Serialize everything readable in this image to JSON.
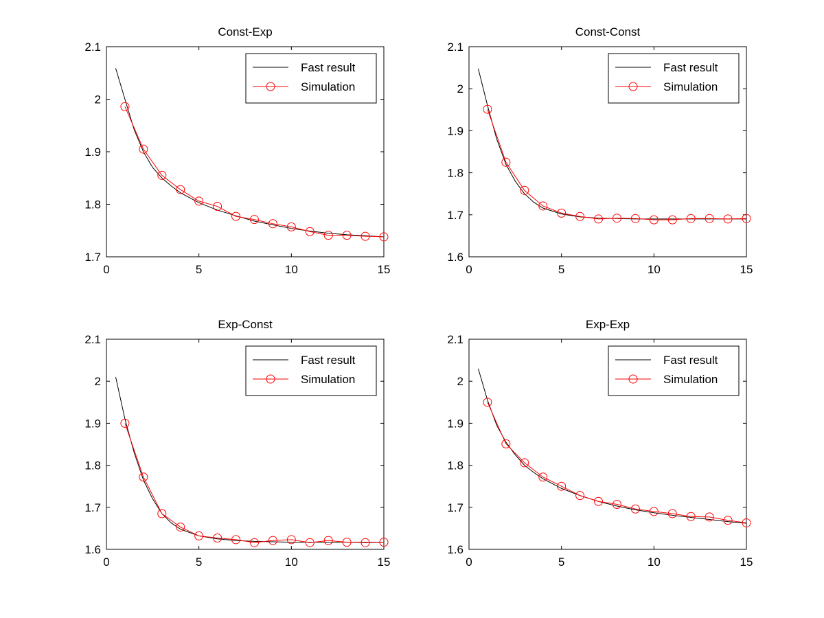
{
  "figure": {
    "background": "#ffffff",
    "fast_color": "#000000",
    "sim_color": "#ff0000"
  },
  "chart_data": [
    {
      "type": "line",
      "title": "Const-Exp",
      "xlabel": "",
      "ylabel": "",
      "xlim": [
        0,
        15
      ],
      "ylim": [
        1.7,
        2.1
      ],
      "xticks": [
        0,
        5,
        10,
        15
      ],
      "yticks": [
        1.7,
        1.8,
        1.9,
        2.0,
        2.1
      ],
      "xtick_labels": [
        "0",
        "5",
        "10",
        "15"
      ],
      "ytick_labels": [
        "1.7",
        "1.8",
        "1.9",
        "2",
        "2.1"
      ],
      "grid": false,
      "legend": {
        "position": "top-right",
        "entries": [
          "Fast result",
          "Simulation"
        ]
      },
      "series": [
        {
          "name": "Fast result",
          "marker": "none",
          "x": [
            0.5,
            1,
            1.5,
            2,
            2.5,
            3,
            3.5,
            4,
            5,
            6,
            7,
            8,
            9,
            10,
            11,
            12,
            13,
            14,
            15
          ],
          "y": [
            2.059,
            2.0,
            1.942,
            1.9,
            1.87,
            1.85,
            1.835,
            1.822,
            1.803,
            1.789,
            1.778,
            1.768,
            1.761,
            1.754,
            1.749,
            1.745,
            1.742,
            1.74,
            1.738
          ]
        },
        {
          "name": "Simulation",
          "marker": "circle",
          "x": [
            1,
            2,
            3,
            4,
            5,
            6,
            7,
            8,
            9,
            10,
            11,
            12,
            13,
            14,
            15
          ],
          "y": [
            1.986,
            1.905,
            1.855,
            1.828,
            1.806,
            1.796,
            1.777,
            1.771,
            1.763,
            1.757,
            1.748,
            1.741,
            1.741,
            1.739,
            1.738
          ]
        }
      ]
    },
    {
      "type": "line",
      "title": "Const-Const",
      "xlabel": "",
      "ylabel": "",
      "xlim": [
        0,
        15
      ],
      "ylim": [
        1.6,
        2.1
      ],
      "xticks": [
        0,
        5,
        10,
        15
      ],
      "yticks": [
        1.6,
        1.7,
        1.8,
        1.9,
        2.0,
        2.1
      ],
      "xtick_labels": [
        "0",
        "5",
        "10",
        "15"
      ],
      "ytick_labels": [
        "1.6",
        "1.7",
        "1.8",
        "1.9",
        "2",
        "2.1"
      ],
      "grid": false,
      "legend": {
        "position": "top-right",
        "entries": [
          "Fast result",
          "Simulation"
        ]
      },
      "series": [
        {
          "name": "Fast result",
          "marker": "none",
          "x": [
            0.5,
            1,
            1.5,
            2,
            2.5,
            3,
            3.5,
            4,
            5,
            6,
            7,
            8,
            9,
            10,
            11,
            12,
            13,
            14,
            15
          ],
          "y": [
            2.048,
            1.96,
            1.88,
            1.82,
            1.78,
            1.75,
            1.73,
            1.716,
            1.702,
            1.695,
            1.692,
            1.691,
            1.69,
            1.69,
            1.69,
            1.69,
            1.69,
            1.69,
            1.69
          ]
        },
        {
          "name": "Simulation",
          "marker": "circle",
          "x": [
            1,
            2,
            3,
            4,
            5,
            6,
            7,
            8,
            9,
            10,
            11,
            12,
            13,
            14,
            15
          ],
          "y": [
            1.951,
            1.825,
            1.758,
            1.721,
            1.704,
            1.696,
            1.69,
            1.692,
            1.691,
            1.688,
            1.688,
            1.691,
            1.691,
            1.69,
            1.691
          ]
        }
      ]
    },
    {
      "type": "line",
      "title": "Exp-Const",
      "xlabel": "",
      "ylabel": "",
      "xlim": [
        0,
        15
      ],
      "ylim": [
        1.6,
        2.1
      ],
      "xticks": [
        0,
        5,
        10,
        15
      ],
      "yticks": [
        1.6,
        1.7,
        1.8,
        1.9,
        2.0,
        2.1
      ],
      "xtick_labels": [
        "0",
        "5",
        "10",
        "15"
      ],
      "ytick_labels": [
        "1.6",
        "1.7",
        "1.8",
        "1.9",
        "2",
        "2.1"
      ],
      "grid": false,
      "legend": {
        "position": "top-right",
        "entries": [
          "Fast result",
          "Simulation"
        ]
      },
      "series": [
        {
          "name": "Fast result",
          "marker": "none",
          "x": [
            0.5,
            1,
            1.5,
            2,
            2.5,
            3,
            3.5,
            4,
            5,
            6,
            7,
            8,
            9,
            10,
            11,
            12,
            13,
            14,
            15
          ],
          "y": [
            2.01,
            1.91,
            1.83,
            1.765,
            1.72,
            1.685,
            1.663,
            1.648,
            1.632,
            1.625,
            1.621,
            1.619,
            1.618,
            1.617,
            1.617,
            1.617,
            1.617,
            1.617,
            1.617
          ]
        },
        {
          "name": "Simulation",
          "marker": "circle",
          "x": [
            1,
            2,
            3,
            4,
            5,
            6,
            7,
            8,
            9,
            10,
            11,
            12,
            13,
            14,
            15
          ],
          "y": [
            1.9,
            1.772,
            1.685,
            1.653,
            1.632,
            1.627,
            1.623,
            1.616,
            1.621,
            1.623,
            1.616,
            1.621,
            1.617,
            1.616,
            1.617
          ]
        }
      ]
    },
    {
      "type": "line",
      "title": "Exp-Exp",
      "xlabel": "",
      "ylabel": "",
      "xlim": [
        0,
        15
      ],
      "ylim": [
        1.6,
        2.1
      ],
      "xticks": [
        0,
        5,
        10,
        15
      ],
      "yticks": [
        1.6,
        1.7,
        1.8,
        1.9,
        2.0,
        2.1
      ],
      "xtick_labels": [
        "0",
        "5",
        "10",
        "15"
      ],
      "ytick_labels": [
        "1.6",
        "1.7",
        "1.8",
        "1.9",
        "2",
        "2.1"
      ],
      "grid": false,
      "legend": {
        "position": "top-right",
        "entries": [
          "Fast result",
          "Simulation"
        ]
      },
      "series": [
        {
          "name": "Fast result",
          "marker": "none",
          "x": [
            0.5,
            1,
            1.5,
            2,
            2.5,
            3,
            3.5,
            4,
            5,
            6,
            7,
            8,
            9,
            10,
            11,
            12,
            13,
            14,
            15
          ],
          "y": [
            2.03,
            1.955,
            1.895,
            1.855,
            1.825,
            1.8,
            1.783,
            1.768,
            1.745,
            1.728,
            1.714,
            1.703,
            1.694,
            1.687,
            1.681,
            1.676,
            1.671,
            1.666,
            1.662
          ]
        },
        {
          "name": "Simulation",
          "marker": "circle",
          "x": [
            1,
            2,
            3,
            4,
            5,
            6,
            7,
            8,
            9,
            10,
            11,
            12,
            13,
            14,
            15
          ],
          "y": [
            1.95,
            1.851,
            1.806,
            1.772,
            1.75,
            1.728,
            1.714,
            1.707,
            1.696,
            1.69,
            1.685,
            1.678,
            1.677,
            1.669,
            1.663
          ]
        }
      ]
    }
  ]
}
